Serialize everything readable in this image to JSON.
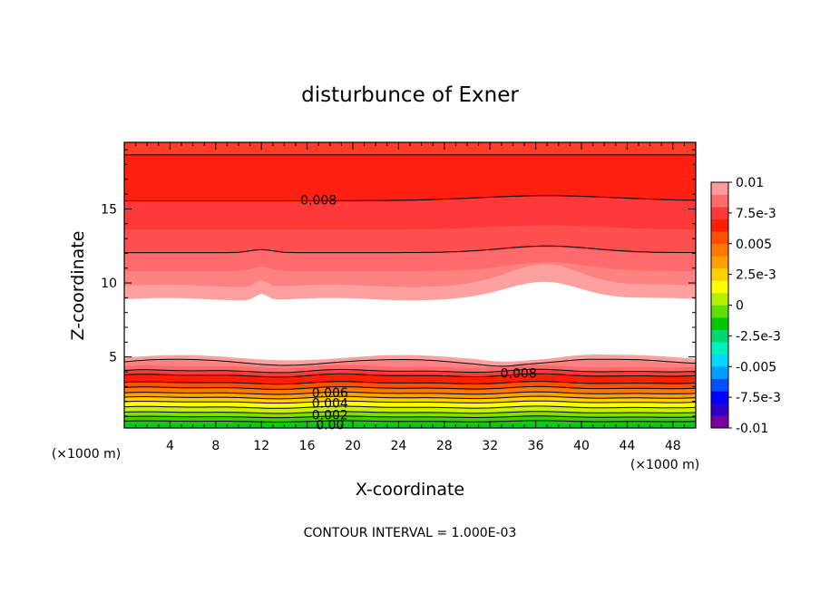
{
  "chart_data": {
    "type": "heatmap",
    "title": "disturbunce of Exner",
    "xlabel": "X-coordinate",
    "ylabel": "Z-coordinate",
    "x_unit": "(×1000 m)",
    "y_unit": "(×1000 m)",
    "footer": "CONTOUR INTERVAL = 1.000E-03",
    "xlim": [
      0,
      50
    ],
    "ylim": [
      0.2,
      19.5
    ],
    "x_ticks": [
      4,
      8,
      12,
      16,
      20,
      24,
      28,
      32,
      36,
      40,
      44,
      48
    ],
    "y_ticks": [
      5,
      10,
      15
    ],
    "colorbar": {
      "range": [
        -0.01,
        0.01
      ],
      "labels": [
        "0.01",
        "7.5e-3",
        "0.005",
        "2.5e-3",
        "0",
        "-2.5e-3",
        "-0.005",
        "-7.5e-3",
        "-0.01"
      ],
      "colors": [
        "#7b00a0",
        "#3000c8",
        "#0000ff",
        "#0050ff",
        "#009cff",
        "#00d8ff",
        "#00f0c0",
        "#00d870",
        "#00c800",
        "#60e000",
        "#b0f000",
        "#ffff00",
        "#ffd000",
        "#ffa000",
        "#ff7800",
        "#ff5000",
        "#ff1e00",
        "#ff3838",
        "#ff6a6a",
        "#ff9a9a"
      ]
    },
    "contour_labels": [
      {
        "text": "0.008",
        "x": 17,
        "z": 15.6
      },
      {
        "text": "0.008",
        "x": 34.5,
        "z": 3.9
      },
      {
        "text": "0.006",
        "x": 18,
        "z": 2.6
      },
      {
        "text": "0.004",
        "x": 18,
        "z": 1.9
      },
      {
        "text": "0.002",
        "x": 18,
        "z": 1.1
      },
      {
        "text": "0.00",
        "x": 18,
        "z": 0.4
      }
    ]
  }
}
